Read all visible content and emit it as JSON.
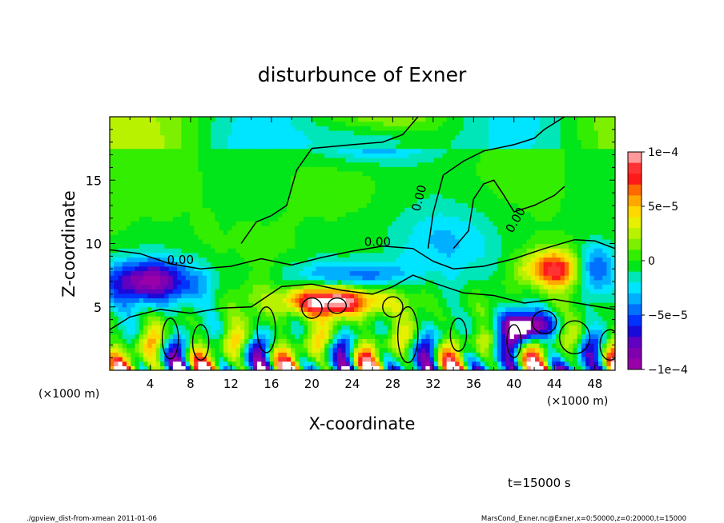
{
  "chart_data": {
    "type": "heatmap",
    "title": "disturbunce of Exner",
    "xlabel": "X-coordinate",
    "ylabel": "Z-coordinate",
    "x_unit_label": "(×1000 m)",
    "x_unit_label_right": "(×1000 m)",
    "xlim": [
      0,
      50
    ],
    "ylim": [
      0,
      20
    ],
    "x_ticks": [
      4,
      8,
      12,
      16,
      20,
      24,
      28,
      32,
      36,
      40,
      44,
      48
    ],
    "x_tick_labels": [
      "4",
      "8",
      "12",
      "16",
      "20",
      "24",
      "28",
      "32",
      "36",
      "40",
      "44",
      "48"
    ],
    "y_ticks": [
      5,
      10,
      15
    ],
    "y_tick_labels": [
      "5",
      "10",
      "15"
    ],
    "colorbar": {
      "range": [
        -0.0001,
        0.0001
      ],
      "tick_values": [
        0.0001,
        5e-05,
        0,
        -5e-05,
        -0.0001
      ],
      "tick_labels": [
        "1e−4",
        "5e−5",
        "0",
        "−5e−5",
        "−1e−4"
      ],
      "colors": [
        "#ff9999",
        "#ff3333",
        "#ff1a1a",
        "#ff6a00",
        "#ffa800",
        "#ffd800",
        "#e6f000",
        "#b8f200",
        "#7cf000",
        "#33ee00",
        "#00e61a",
        "#00e6b8",
        "#00e5ff",
        "#00b0ff",
        "#0070ff",
        "#0033ff",
        "#1a0ad9",
        "#6000c0",
        "#8000b0",
        "#9900aa"
      ]
    },
    "contour_labels": [
      "0.00",
      "0.00",
      "0.00",
      "0.00"
    ],
    "annotation": "t=15000 s"
  },
  "footer": {
    "left": "./gpview_dist-from-xmean  2011-01-06",
    "right": "MarsCond_Exner.nc@Exner,x=0:50000,z=0:20000,t=15000"
  }
}
